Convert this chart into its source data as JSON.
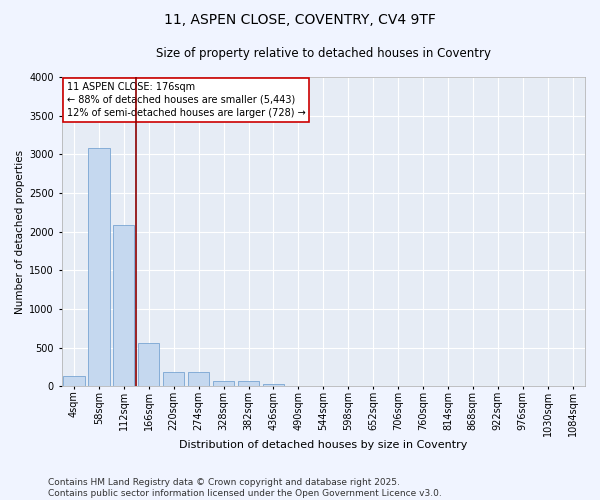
{
  "title_line1": "11, ASPEN CLOSE, COVENTRY, CV4 9TF",
  "title_line2": "Size of property relative to detached houses in Coventry",
  "xlabel": "Distribution of detached houses by size in Coventry",
  "ylabel": "Number of detached properties",
  "categories": [
    "4sqm",
    "58sqm",
    "112sqm",
    "166sqm",
    "220sqm",
    "274sqm",
    "328sqm",
    "382sqm",
    "436sqm",
    "490sqm",
    "544sqm",
    "598sqm",
    "652sqm",
    "706sqm",
    "760sqm",
    "814sqm",
    "868sqm",
    "922sqm",
    "976sqm",
    "1030sqm",
    "1084sqm"
  ],
  "values": [
    130,
    3080,
    2080,
    560,
    190,
    185,
    70,
    70,
    35,
    5,
    0,
    0,
    0,
    0,
    0,
    0,
    0,
    0,
    0,
    0,
    0
  ],
  "bar_color": "#c5d8ef",
  "bar_edge_color": "#6699cc",
  "vline_color": "#8b0000",
  "vline_x_index": 2.5,
  "ylim": [
    0,
    4000
  ],
  "yticks": [
    0,
    500,
    1000,
    1500,
    2000,
    2500,
    3000,
    3500,
    4000
  ],
  "annotation_text": "11 ASPEN CLOSE: 176sqm\n← 88% of detached houses are smaller (5,443)\n12% of semi-detached houses are larger (728) →",
  "annotation_box_color": "white",
  "annotation_box_edge": "#cc0000",
  "background_color": "#f0f4ff",
  "plot_bg_color": "#e6ecf5",
  "footer_text": "Contains HM Land Registry data © Crown copyright and database right 2025.\nContains public sector information licensed under the Open Government Licence v3.0.",
  "grid_color": "#ffffff",
  "title_fontsize": 10,
  "subtitle_fontsize": 8.5,
  "xlabel_fontsize": 8,
  "ylabel_fontsize": 7.5,
  "tick_fontsize": 7,
  "annotation_fontsize": 7,
  "footer_fontsize": 6.5
}
